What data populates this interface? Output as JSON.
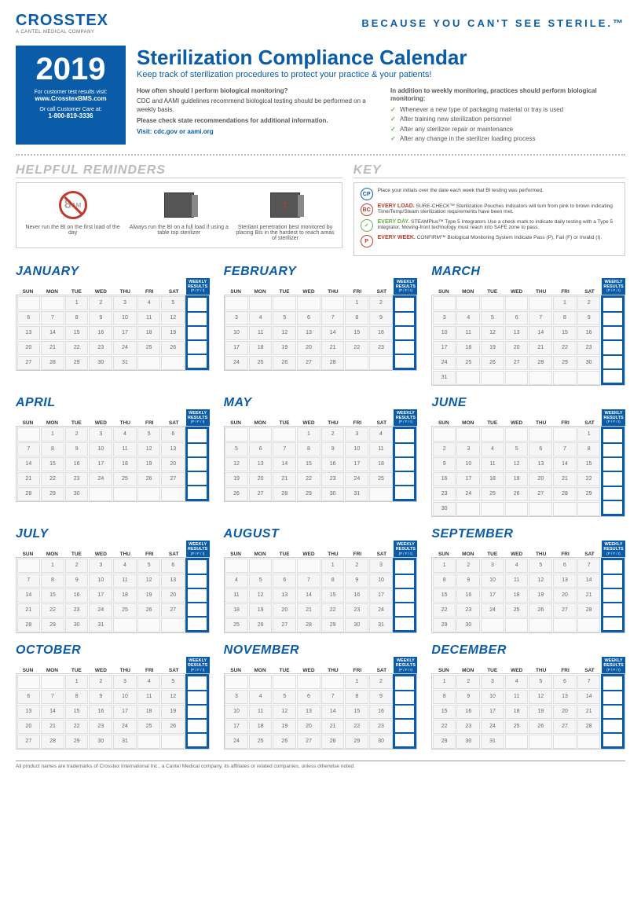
{
  "brand": {
    "name": "CROSSTEX",
    "sub": "A CANTEL MEDICAL COMPANY"
  },
  "tagline": "BECAUSE YOU CAN'T SEE STERILE.™",
  "yearBox": {
    "year": "2019",
    "line1": "For customer test results visit:",
    "site": "www.CrosstexBMS.com",
    "line2": "Or call Customer Care at:",
    "phone": "1-800-819-3336"
  },
  "title": "Sterilization Compliance Calendar",
  "subtitle": "Keep track of sterilization procedures to protect your practice & your patients!",
  "col1": {
    "q": "How often should I perform biological monitoring?",
    "body": "CDC and AAMI guidelines recommend biological testing should be performed on a weekly basis.",
    "bold": "Please check state recommendations for additional information.",
    "link": "Visit: cdc.gov or aami.org"
  },
  "col2": {
    "q": "In addition to weekly monitoring, practices should perform biological monitoring:",
    "items": [
      "Whenever a new type of packaging material or tray is used",
      "After training new sterilization personnel",
      "After any sterilizer repair or maintenance",
      "After any change in the sterilizer loading process"
    ]
  },
  "remindersTitle": "HELPFUL REMINDERS",
  "reminders": [
    "Never run the BI on the first load of the day",
    "Always run the BI on a full load if using a table top sterilizer",
    "Sterilant penetration best monitored by placing BIs in the hardest to reach areas of sterilizer"
  ],
  "keyTitle": "KEY",
  "keyItems": [
    {
      "icon": "CP",
      "cls": "",
      "head": "",
      "body": "Place your initials over the date each week that BI testing was performed."
    },
    {
      "icon": "BC",
      "cls": "red",
      "head": "EVERY LOAD.",
      "body": "SURE-CHECK™ Sterilization Pouches Indicators will turn from pink to brown indicating Time/Temp/Steam sterilization requirements have been met."
    },
    {
      "icon": "✓",
      "cls": "green",
      "head": "EVERY DAY.",
      "body": "STEAMPlus™ Type 5 Integrators Use a check mark to indicate daily testing with a Type 5 integrator. Moving-front technology must reach into SAFE zone to pass."
    },
    {
      "icon": "P",
      "cls": "red",
      "head": "EVERY WEEK.",
      "body": "CONFIRM™ Biological Monitoring System Indicate Pass (P), Fail (F) or Invalid (I)."
    }
  ],
  "dow": [
    "SUN",
    "MON",
    "TUE",
    "WED",
    "THU",
    "FRI",
    "SAT"
  ],
  "weeklyLabel": "WEEKLY RESULTS",
  "weeklySub": "(P / F / I)",
  "months": [
    {
      "name": "JANUARY",
      "start": 2,
      "days": 31,
      "rows": 5
    },
    {
      "name": "FEBRUARY",
      "start": 5,
      "days": 28,
      "rows": 5
    },
    {
      "name": "MARCH",
      "start": 5,
      "days": 31,
      "rows": 6
    },
    {
      "name": "APRIL",
      "start": 1,
      "days": 30,
      "rows": 5
    },
    {
      "name": "MAY",
      "start": 3,
      "days": 31,
      "rows": 5
    },
    {
      "name": "JUNE",
      "start": 6,
      "days": 30,
      "rows": 6
    },
    {
      "name": "JULY",
      "start": 1,
      "days": 31,
      "rows": 5
    },
    {
      "name": "AUGUST",
      "start": 4,
      "days": 31,
      "rows": 5
    },
    {
      "name": "SEPTEMBER",
      "start": 0,
      "days": 30,
      "rows": 5
    },
    {
      "name": "OCTOBER",
      "start": 2,
      "days": 31,
      "rows": 5
    },
    {
      "name": "NOVEMBER",
      "start": 5,
      "days": 30,
      "rows": 5
    },
    {
      "name": "DECEMBER",
      "start": 0,
      "days": 31,
      "rows": 5
    }
  ],
  "footer": "All product names are trademarks of Crosstex International Inc., a Cantel Medical company, its affiliates or related companies, unless otherwise noted."
}
